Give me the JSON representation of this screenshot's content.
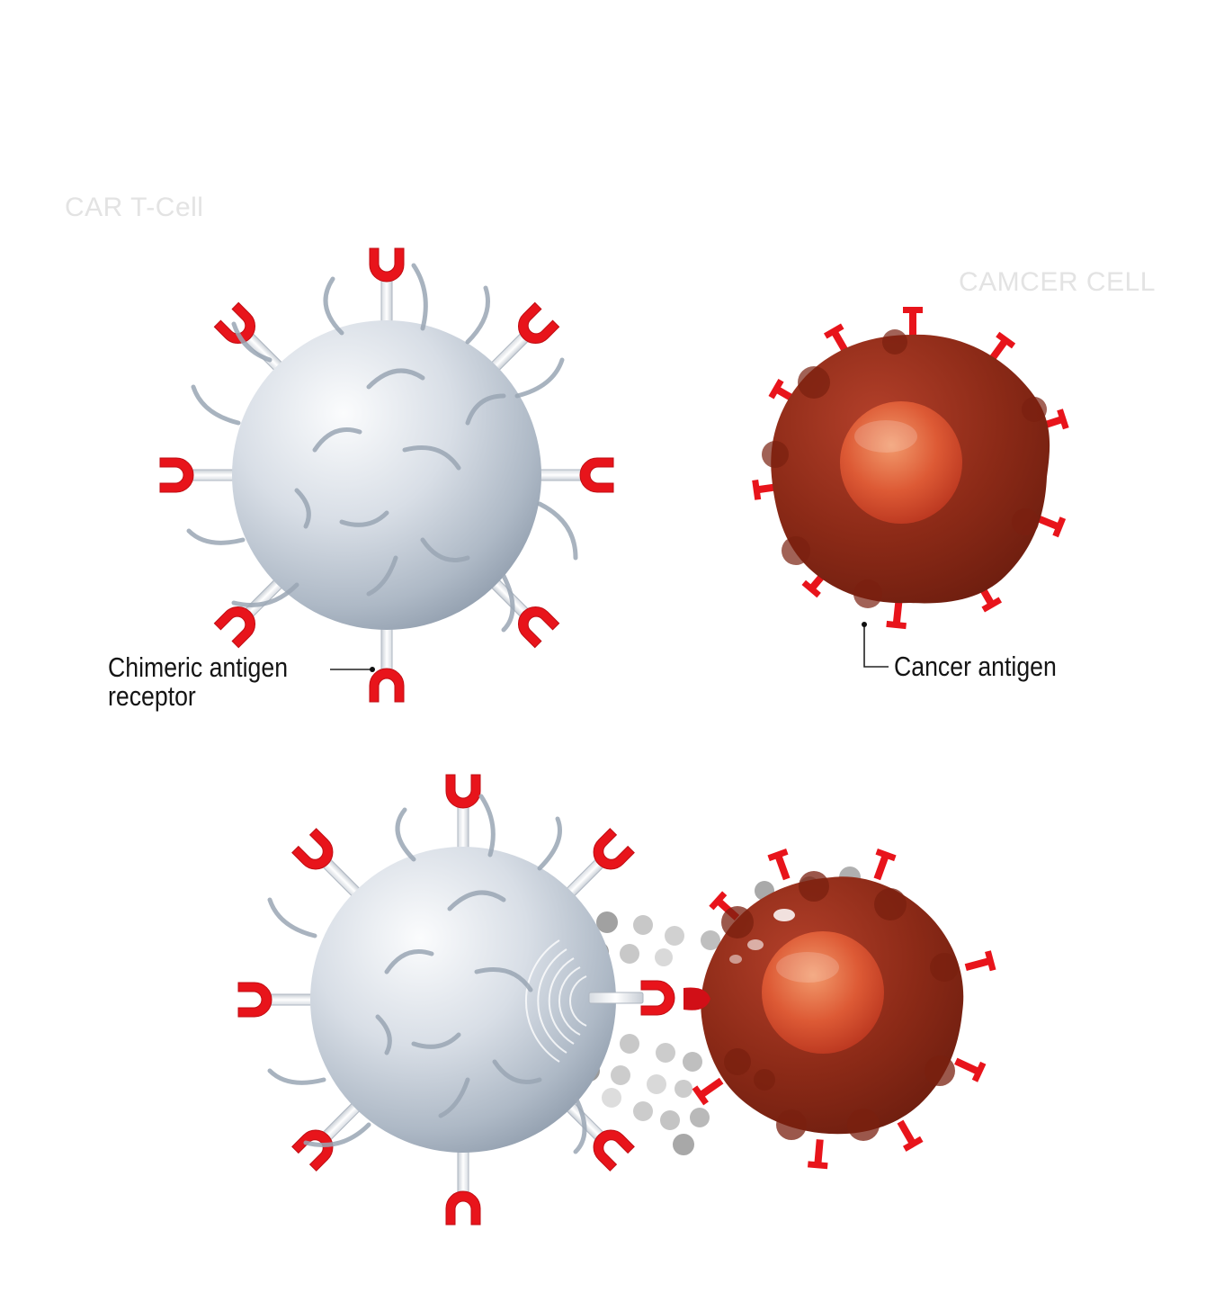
{
  "labels": {
    "car_t_cell": "CAR T-Cell",
    "cancer_cell": "CAMCER CELL",
    "receptor_line1": "Chimeric antigen",
    "receptor_line2": "receptor",
    "cancer_antigen": "Cancer antigen"
  },
  "colors": {
    "receptor_red": "#e8141b",
    "tcell_gray": "#b9c3cf",
    "cancer_brown": "#8a2716",
    "nucleus_orange": "#d9512b",
    "granule_gray": "#7d7d7d",
    "faint_label": "#e3e3e3"
  }
}
